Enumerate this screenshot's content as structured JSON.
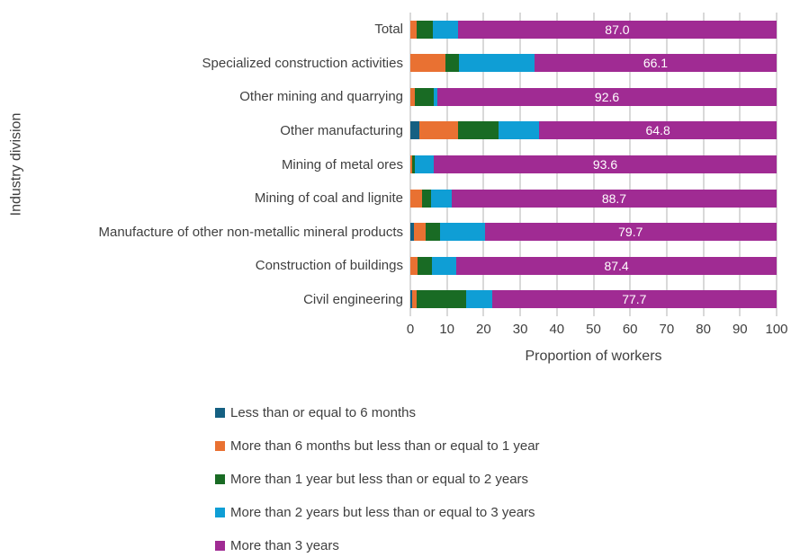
{
  "chart_data": {
    "type": "bar",
    "variant": "horizontal-stacked",
    "title": "",
    "xlabel": "Proportion of workers",
    "ylabel": "Industry division",
    "xlim": [
      0,
      100
    ],
    "xticks": [
      0,
      10,
      20,
      30,
      40,
      50,
      60,
      70,
      80,
      90,
      100
    ],
    "grid": "vertical",
    "legend_position": "bottom-left",
    "categories": [
      "Total",
      "Specialized construction activities",
      "Other mining and quarrying",
      "Other manufacturing",
      "Mining of metal ores",
      "Mining of coal and lignite",
      "Manufacture of other non-metallic mineral products",
      "Construction of buildings",
      "Civil engineering"
    ],
    "series": [
      {
        "name": "Less than or equal to 6 months",
        "color": "#156082",
        "values": [
          0,
          0,
          0,
          2.5,
          0,
          0,
          1.0,
          0,
          0.5
        ]
      },
      {
        "name": "More than 6 months but less than or equal to 1 year",
        "color": "#E97132",
        "values": [
          1.8,
          9.6,
          1.3,
          10.6,
          0.5,
          3.1,
          3.3,
          2.0,
          1.3
        ]
      },
      {
        "name": "More than 1 year but less than or equal to 2 years",
        "color": "#196B24",
        "values": [
          4.3,
          3.7,
          5.0,
          11.0,
          0.8,
          2.6,
          3.9,
          3.9,
          13.5
        ]
      },
      {
        "name": "More than 2 years but less than or equal to 3 years",
        "color": "#0F9ED5",
        "values": [
          6.9,
          20.6,
          1.1,
          11.1,
          5.1,
          5.6,
          12.1,
          6.7,
          7.0
        ]
      },
      {
        "name": "More than 3 years",
        "color": "#A02B93",
        "values": [
          87.0,
          66.1,
          92.6,
          64.8,
          93.6,
          88.7,
          79.7,
          87.4,
          77.7
        ],
        "data_labels": [
          "87.0",
          "66.1",
          "92.6",
          "64.8",
          "93.6",
          "88.7",
          "79.7",
          "87.4",
          "77.7"
        ]
      }
    ],
    "labeled_series": "More than 3 years",
    "colors": {
      "gridline": "#d9d9d9",
      "text": "#3f3f3f",
      "data_label_text": "#ffffff"
    }
  }
}
